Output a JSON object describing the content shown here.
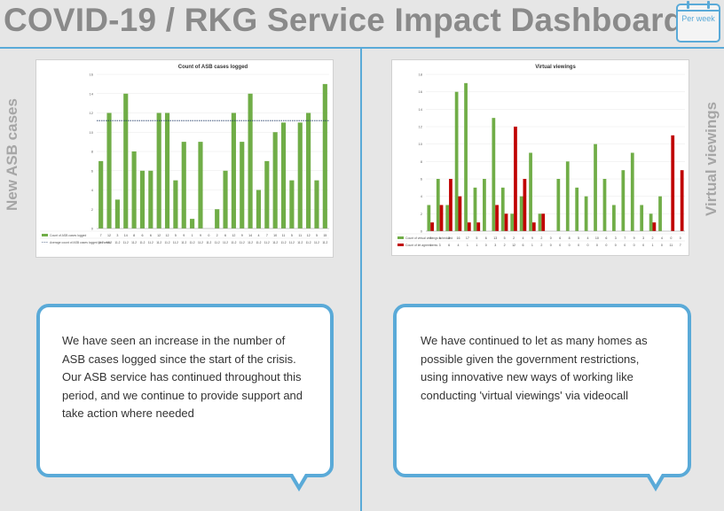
{
  "header": {
    "title": "COVID-19 / RKG Service Impact Dashboard",
    "calendar_label": "Per week"
  },
  "left": {
    "side_label": "New ASB cases",
    "callout": "We have seen an increase in the number of ASB cases logged since the start of the crisis. Our ASB service has continued throughout this period, and we continue to provide support and take action where needed"
  },
  "right": {
    "side_label": "Virtual viewings",
    "callout": "We have continued to let as many homes as possible given the government restrictions, using innovative new ways of working like conducting 'virtual viewings' via videocall"
  },
  "colors": {
    "accent": "#5aaad8",
    "green": "#70ad47",
    "red": "#c00000",
    "title": "#8a8a8a"
  },
  "chart_data": [
    {
      "type": "bar",
      "title": "Count of ASB cases logged",
      "ylim": [
        0,
        16
      ],
      "yticks": [
        "0",
        "2",
        "4",
        "6",
        "8",
        "10",
        "12",
        "14",
        "16"
      ],
      "series": [
        {
          "name": "Count of ASB cases logged",
          "values": [
            7,
            12,
            3,
            14,
            8,
            6,
            6,
            12,
            12,
            5,
            9,
            1,
            9,
            0,
            2,
            6,
            12,
            9,
            14,
            4,
            7,
            10,
            11,
            5,
            11,
            12,
            5,
            15
          ]
        }
      ],
      "average": {
        "name": "Average count of ASB cases logged per week",
        "value": 11.2
      }
    },
    {
      "type": "bar",
      "title": "Virtual viewings",
      "ylim": [
        0,
        18
      ],
      "yticks": [
        "0",
        "2",
        "4",
        "6",
        "8",
        "10",
        "12",
        "14",
        "16",
        "18"
      ],
      "series": [
        {
          "name": "Count of virtual viewings scheduled",
          "values": [
            3,
            6,
            3,
            16,
            17,
            5,
            6,
            13,
            5,
            2,
            4,
            9,
            2,
            0,
            6,
            8,
            5,
            4,
            10,
            6,
            3,
            7,
            9,
            3,
            2,
            4,
            0,
            0
          ]
        },
        {
          "name": "Count of let agreements",
          "values": [
            1,
            3,
            6,
            4,
            1,
            1,
            0,
            3,
            2,
            12,
            6,
            1,
            2,
            0,
            0,
            0,
            0,
            0,
            0,
            0,
            0,
            0,
            0,
            0,
            1,
            0,
            11,
            7
          ]
        }
      ]
    }
  ]
}
